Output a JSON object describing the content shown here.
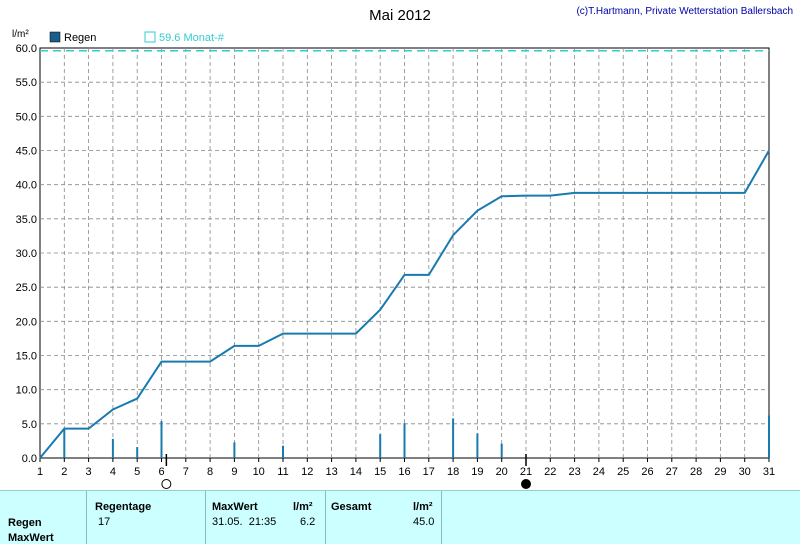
{
  "chart_data": {
    "type": "line",
    "title": "Mai 2012",
    "credit": "(c)T.Hartmann, Private Wetterstation Ballersbach",
    "ylabel": "l/m²",
    "xlim": [
      1,
      31
    ],
    "ylim": [
      0,
      60
    ],
    "x_ticks": [
      "1",
      "2",
      "3",
      "4",
      "5",
      "6",
      "7",
      "8",
      "9",
      "10",
      "11",
      "12",
      "13",
      "14",
      "15",
      "16",
      "17",
      "18",
      "19",
      "20",
      "21",
      "22",
      "23",
      "24",
      "25",
      "26",
      "27",
      "28",
      "29",
      "30",
      "31"
    ],
    "y_ticks": [
      "0.0",
      "5.0",
      "10.0",
      "15.0",
      "20.0",
      "25.0",
      "30.0",
      "35.0",
      "40.0",
      "45.0",
      "50.0",
      "55.0",
      "60.0"
    ],
    "grid": true,
    "legend": [
      {
        "name": "Regen",
        "color": "#1a7ab0",
        "marker": "filled-square"
      },
      {
        "name": "59.6 Monat-#",
        "color": "#33cccc",
        "marker": "open-square"
      }
    ],
    "reference_line": {
      "label": "59.6 Monat-#",
      "value": 59.6,
      "color": "#33cccc"
    },
    "cumulative": {
      "name": "Regen",
      "x": [
        1,
        2,
        3,
        4,
        5,
        6,
        7,
        8,
        9,
        10,
        11,
        12,
        13,
        14,
        15,
        16,
        17,
        18,
        19,
        20,
        21,
        22,
        23,
        24,
        25,
        26,
        27,
        28,
        29,
        30,
        31
      ],
      "y": [
        0.0,
        4.3,
        4.3,
        7.1,
        8.7,
        14.1,
        14.1,
        14.1,
        16.4,
        16.4,
        18.2,
        18.2,
        18.2,
        18.2,
        21.7,
        26.8,
        26.8,
        32.6,
        36.2,
        38.3,
        38.4,
        38.4,
        38.8,
        38.8,
        38.8,
        38.8,
        38.8,
        38.8,
        38.8,
        38.8,
        45.0
      ]
    },
    "daily": {
      "name": "Regen",
      "x": [
        2,
        4,
        5,
        6,
        9,
        11,
        15,
        16,
        18,
        19,
        20,
        31
      ],
      "y": [
        4.3,
        2.8,
        1.6,
        5.4,
        2.3,
        1.8,
        3.5,
        5.1,
        5.8,
        3.6,
        2.1,
        6.2
      ]
    },
    "moon_phases": [
      {
        "day": 6.2,
        "phase": "full"
      },
      {
        "day": 21.0,
        "phase": "new"
      }
    ],
    "line_color": "#1a7ab0"
  },
  "summary": {
    "col_regentage": "Regentage",
    "col_maxwert": "MaxWert",
    "col_unit1": "l/m²",
    "col_gesamt": "Gesamt",
    "col_unit2": "l/m²",
    "row1_label": "Regen",
    "row2_label": "MaxWert",
    "regentage": "17",
    "maxwert_datetime": "31.05.  21:35",
    "maxwert_value": "6.2",
    "gesamt_value": "45.0"
  }
}
